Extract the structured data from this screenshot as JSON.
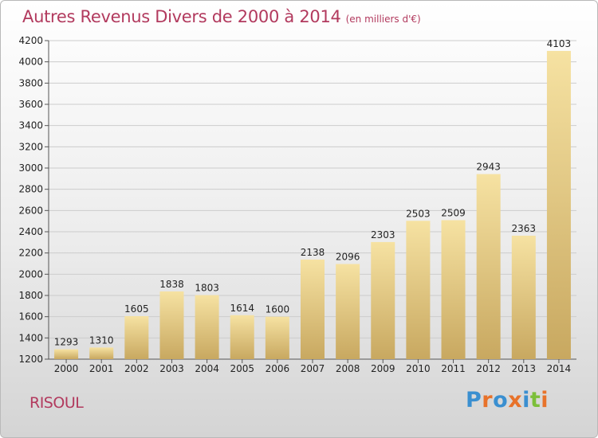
{
  "header": {
    "title": "Autres Revenus Divers de 2000 à 2014",
    "unit": "(en milliers d'€)"
  },
  "footer": {
    "commune": "RISOUL",
    "logo_text": "Proxiti",
    "logo_colors": [
      "#3a8fd0",
      "#e8722a",
      "#3a8fd0",
      "#e8722a",
      "#3a8fd0",
      "#7cbf3a",
      "#e8722a"
    ]
  },
  "colors": {
    "title": "#b23a5e",
    "bar_light": "#f6e2a2",
    "bar_dark": "#c8a860",
    "grid": "#cccccc"
  },
  "chart_data": {
    "type": "bar",
    "title": "Autres Revenus Divers de 2000 à 2014",
    "xlabel": "",
    "ylabel": "",
    "categories": [
      "2000",
      "2001",
      "2002",
      "2003",
      "2004",
      "2005",
      "2006",
      "2007",
      "2008",
      "2009",
      "2010",
      "2011",
      "2012",
      "2013",
      "2014"
    ],
    "values": [
      1293,
      1310,
      1605,
      1838,
      1803,
      1614,
      1600,
      2138,
      2096,
      2303,
      2503,
      2509,
      2943,
      2363,
      4103
    ],
    "ylim": [
      1200,
      4200
    ],
    "yticks": [
      1200,
      1400,
      1600,
      1800,
      2000,
      2200,
      2400,
      2600,
      2800,
      3000,
      3200,
      3400,
      3600,
      3800,
      4000,
      4200
    ],
    "grid": true,
    "legend": "none"
  }
}
